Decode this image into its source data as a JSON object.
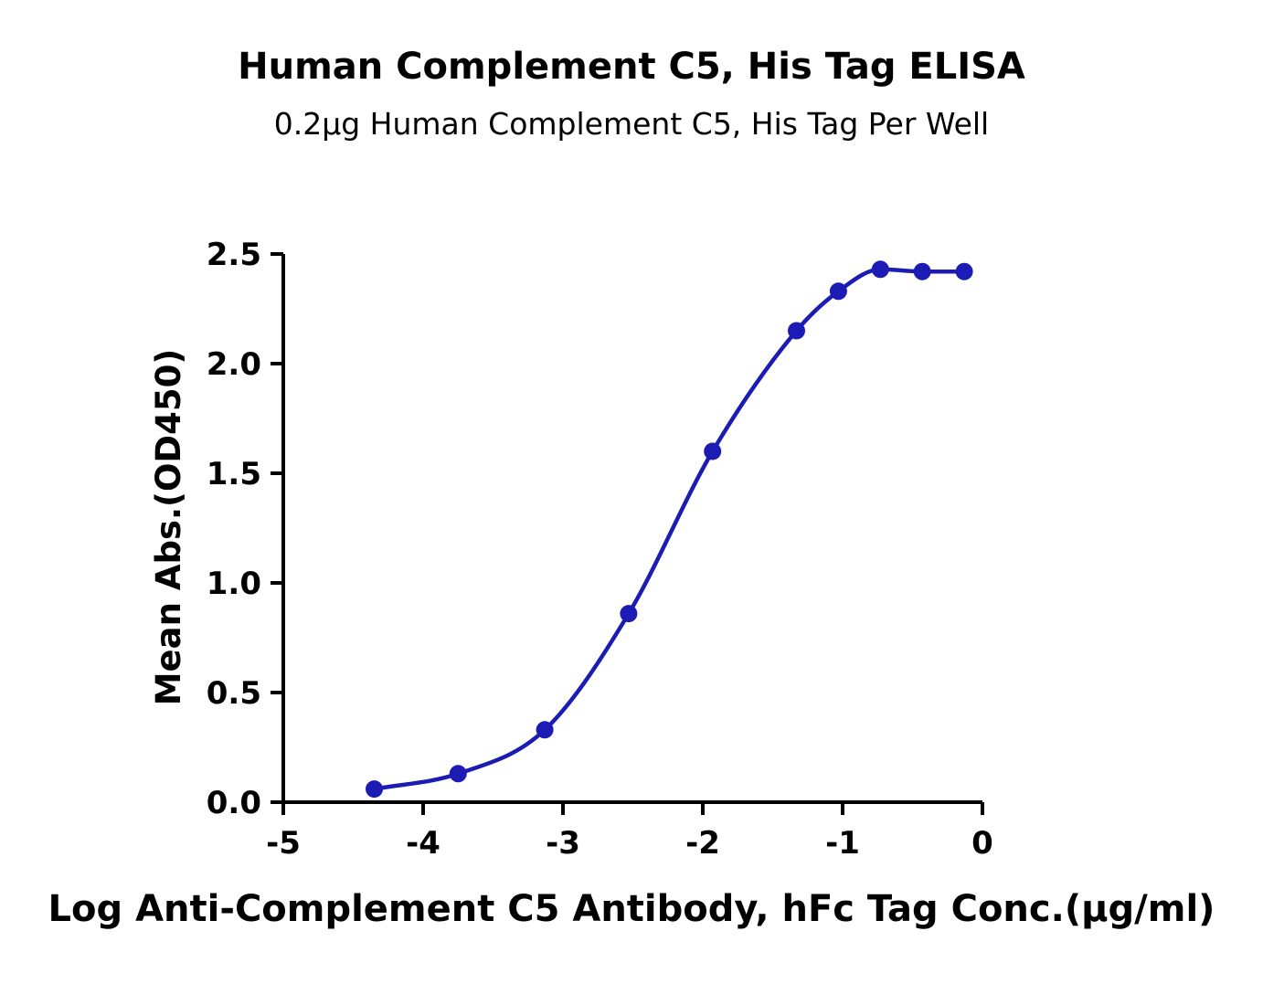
{
  "page_title": "Human Complement C5, His Tag ELISA",
  "colors": {
    "accent": "#1c1cb4",
    "axis": "#000000",
    "background": "#ffffff"
  },
  "chart_data": {
    "type": "scatter",
    "title": "Human Complement C5, His Tag ELISA",
    "subtitle": "0.2µg Human Complement C5, His Tag Per Well",
    "xlabel": "Log Anti-Complement C5 Antibody, hFc Tag Conc.(µg/ml)",
    "ylabel": "Mean Abs.(OD450)",
    "xlim": [
      -5,
      0
    ],
    "ylim": [
      0,
      2.5
    ],
    "x_ticks": [
      -5,
      -4,
      -3,
      -2,
      -1,
      0
    ],
    "y_ticks": [
      0,
      0.5,
      1,
      1.5,
      2,
      2.5
    ],
    "grid": false,
    "legend": false,
    "curve_style": "smooth sigmoidal fit through points",
    "series": [
      {
        "name": "Anti-Complement C5 Antibody, hFc Tag",
        "color": "#1c1cb4",
        "x": [
          -4.35,
          -3.75,
          -3.13,
          -2.53,
          -1.93,
          -1.33,
          -1.03,
          -0.73,
          -0.43,
          -0.13
        ],
        "y": [
          0.06,
          0.13,
          0.33,
          0.86,
          1.6,
          2.15,
          2.33,
          2.43,
          2.42,
          2.42
        ]
      }
    ]
  }
}
